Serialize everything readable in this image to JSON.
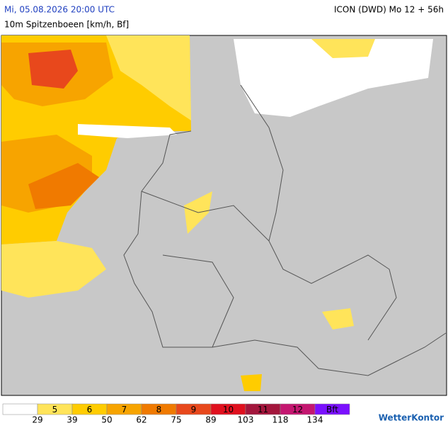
{
  "header": {
    "datetime": "Mi, 05.08.2026 20:00 UTC",
    "model": "ICON (DWD) Mo 12 + 56h",
    "parameter": "10m Spitzenboeen [km/h, Bf]"
  },
  "legend": {
    "colors": [
      "#ffffff",
      "#ffe45a",
      "#ffcc00",
      "#f7a400",
      "#f07a00",
      "#e8481c",
      "#e0101e",
      "#a3163c",
      "#c41670",
      "#7a10ff"
    ],
    "labels": [
      "5",
      "6",
      "7",
      "8",
      "9",
      "10",
      "11",
      "12",
      "Bft"
    ],
    "thresholds": [
      29,
      39,
      50,
      62,
      75,
      89,
      103,
      118,
      134
    ]
  },
  "logo": "WetterKontor"
}
